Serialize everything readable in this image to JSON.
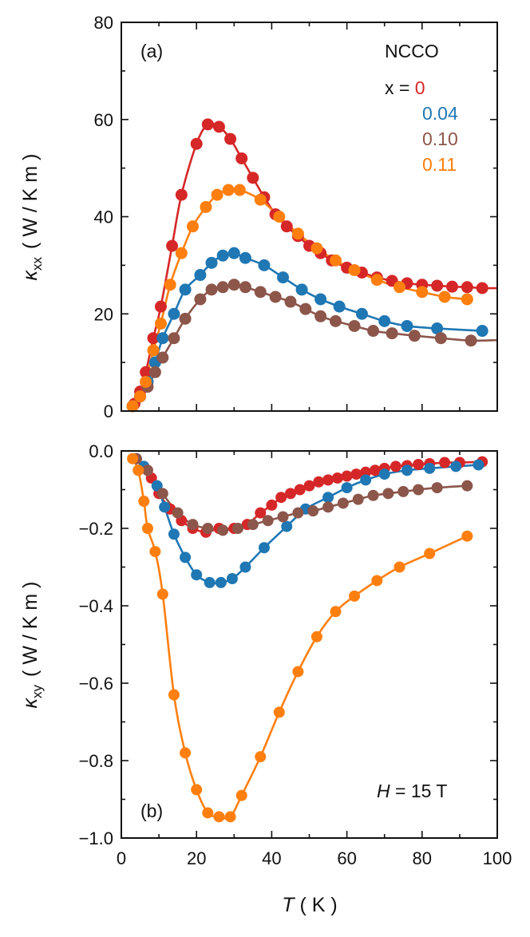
{
  "chart_data": [
    {
      "type": "line",
      "panel": "(a)",
      "title": "NCCO",
      "xlabel": "T ( K )",
      "ylabel": "κxx ( W / K m )",
      "ylabel_parts": {
        "symbol": "κ",
        "subscript": "xx",
        "units": "( W / K m )"
      },
      "xlim": [
        0,
        100
      ],
      "ylim": [
        0,
        80
      ],
      "xticks": [
        0,
        20,
        40,
        60,
        80,
        100
      ],
      "yticks": [
        0,
        20,
        40,
        60,
        80
      ],
      "ytick_labels": [
        "0",
        "20",
        "40",
        "60",
        "80"
      ],
      "legend_prefix": "x = ",
      "series": [
        {
          "name": "0",
          "color": "#d62728",
          "x": [
            3.5,
            5,
            6.5,
            8.5,
            10.5,
            13.5,
            16,
            20,
            23,
            26,
            29,
            32,
            35,
            38,
            41,
            44,
            47,
            50,
            53,
            56,
            60,
            64,
            68,
            72,
            76,
            80,
            84,
            88,
            92,
            96
          ],
          "y": [
            1.5,
            4,
            8,
            15,
            21.5,
            34,
            44.5,
            55,
            59,
            58.5,
            56,
            52,
            48,
            44,
            40.5,
            38,
            36,
            34,
            32.5,
            31,
            29.5,
            28.5,
            27.5,
            26.8,
            26.3,
            26,
            25.8,
            25.6,
            25.5,
            25.3
          ]
        },
        {
          "name": "0.04",
          "color": "#1f77b4",
          "x": [
            3,
            5,
            7,
            9,
            11,
            14,
            17,
            21,
            24,
            27,
            30,
            33,
            38,
            43,
            48,
            53,
            58,
            64,
            70,
            76,
            84,
            96
          ],
          "y": [
            1,
            3,
            6,
            10,
            15,
            20,
            25,
            28,
            30.5,
            32,
            32.5,
            31.5,
            30,
            27.5,
            25,
            23,
            21.5,
            20,
            18.5,
            17.5,
            17,
            16.5
          ]
        },
        {
          "name": "0.10",
          "color": "#8c564b",
          "x": [
            3,
            5,
            7,
            9,
            11,
            14,
            17,
            21,
            24,
            27,
            30,
            33,
            37,
            41,
            45,
            49,
            53,
            57,
            62,
            67,
            72,
            78,
            85,
            93
          ],
          "y": [
            1,
            3,
            5,
            8,
            11,
            15,
            19,
            23,
            25,
            25.5,
            26,
            25.5,
            24.5,
            23.5,
            22.5,
            21,
            19.5,
            18.5,
            17.5,
            16.5,
            16,
            15.5,
            15,
            14.5
          ]
        },
        {
          "name": "0.11",
          "color": "#ff7f0e",
          "x": [
            3,
            5,
            6.5,
            8.5,
            10.5,
            13,
            16,
            19,
            22.5,
            25.5,
            28.5,
            31.5,
            37,
            42,
            47,
            52,
            57,
            62,
            68,
            74,
            80,
            86,
            92
          ],
          "y": [
            1,
            3,
            6,
            12.5,
            18,
            26,
            32.5,
            38,
            42,
            44.5,
            45.5,
            45.5,
            43.5,
            40,
            36.5,
            33.5,
            31,
            29,
            27,
            25.5,
            24.5,
            23.5,
            23
          ]
        }
      ]
    },
    {
      "type": "line",
      "panel": "(b)",
      "annotation": {
        "symbol": "H",
        "rest": " = 15 T"
      },
      "xlabel": "T ( K )",
      "xlabel_parts": {
        "symbol": "T",
        "units": " ( K )"
      },
      "ylabel": "κxy ( W / K m )",
      "ylabel_parts": {
        "symbol": "κ",
        "subscript": "xy",
        "units": "( W / K m )"
      },
      "xlim": [
        0,
        100
      ],
      "ylim": [
        -1.0,
        0.0
      ],
      "xticks": [
        0,
        20,
        40,
        60,
        80,
        100
      ],
      "xtick_labels": [
        "0",
        "20",
        "40",
        "60",
        "80",
        "100"
      ],
      "yticks": [
        0.0,
        -0.2,
        -0.4,
        -0.6,
        -0.8,
        -1.0
      ],
      "ytick_labels": [
        "0.0",
        "−0.2",
        "−0.4",
        "−0.6",
        "−0.8",
        "−1.0"
      ],
      "series": [
        {
          "name": "0",
          "color": "#d62728",
          "x": [
            4,
            6,
            8,
            10,
            13,
            16,
            19,
            22.5,
            26,
            30,
            33.5,
            37,
            40,
            42.5,
            45,
            47.5,
            50,
            52.5,
            55,
            57.5,
            60,
            62.5,
            65,
            67.5,
            70,
            73,
            76,
            79,
            82,
            86,
            90,
            96
          ],
          "y": [
            -0.02,
            -0.04,
            -0.07,
            -0.11,
            -0.15,
            -0.18,
            -0.2,
            -0.21,
            -0.2,
            -0.2,
            -0.19,
            -0.16,
            -0.14,
            -0.12,
            -0.11,
            -0.1,
            -0.09,
            -0.08,
            -0.075,
            -0.07,
            -0.065,
            -0.06,
            -0.055,
            -0.05,
            -0.045,
            -0.04,
            -0.038,
            -0.035,
            -0.033,
            -0.03,
            -0.03,
            -0.028
          ]
        },
        {
          "name": "0.04",
          "color": "#1f77b4",
          "x": [
            4,
            6,
            9.5,
            11.5,
            14,
            17,
            20,
            23.5,
            26.5,
            29.5,
            33,
            38,
            44,
            49,
            55,
            60,
            65,
            70,
            76,
            82,
            89,
            95
          ],
          "y": [
            -0.02,
            -0.04,
            -0.09,
            -0.145,
            -0.215,
            -0.275,
            -0.32,
            -0.34,
            -0.34,
            -0.33,
            -0.3,
            -0.25,
            -0.195,
            -0.15,
            -0.12,
            -0.095,
            -0.075,
            -0.06,
            -0.05,
            -0.045,
            -0.04,
            -0.036
          ]
        },
        {
          "name": "0.10",
          "color": "#8c564b",
          "x": [
            4,
            7,
            11,
            15,
            19,
            23,
            27,
            31,
            35,
            39,
            43,
            47,
            51,
            55,
            59,
            63,
            67,
            71,
            75,
            79,
            84,
            92
          ],
          "y": [
            -0.02,
            -0.05,
            -0.11,
            -0.16,
            -0.19,
            -0.2,
            -0.205,
            -0.2,
            -0.19,
            -0.18,
            -0.17,
            -0.16,
            -0.155,
            -0.145,
            -0.135,
            -0.125,
            -0.115,
            -0.11,
            -0.105,
            -0.1,
            -0.095,
            -0.09
          ]
        },
        {
          "name": "0.11",
          "color": "#ff7f0e",
          "x": [
            3,
            4.5,
            6,
            7,
            9,
            11,
            14,
            17,
            20,
            23,
            26,
            29,
            32,
            37,
            42,
            47,
            52,
            57,
            62,
            68,
            74,
            82,
            92
          ],
          "y": [
            -0.02,
            -0.05,
            -0.13,
            -0.2,
            -0.26,
            -0.37,
            -0.63,
            -0.78,
            -0.875,
            -0.935,
            -0.945,
            -0.945,
            -0.89,
            -0.79,
            -0.675,
            -0.57,
            -0.48,
            -0.415,
            -0.375,
            -0.335,
            -0.3,
            -0.265,
            -0.22
          ]
        }
      ]
    }
  ]
}
